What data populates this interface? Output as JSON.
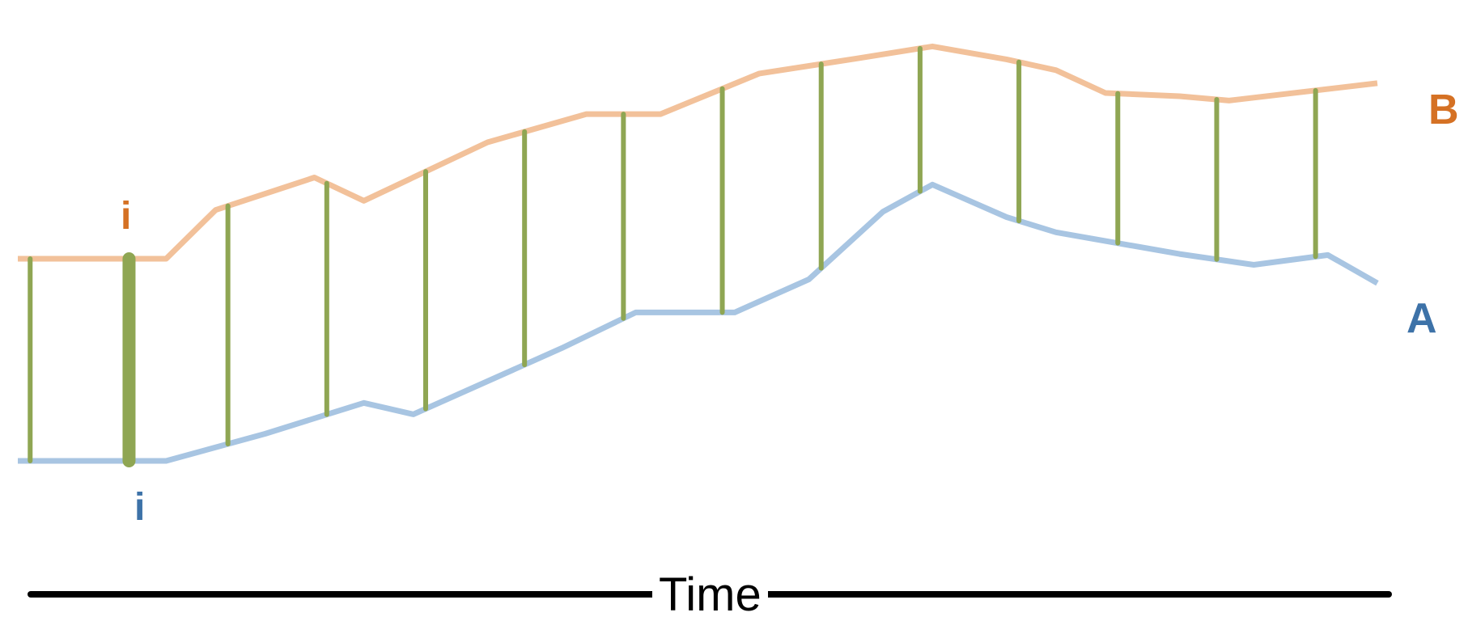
{
  "colors": {
    "series_a": "#a8c5e2",
    "series_b": "#f2c19a",
    "label_a": "#3d72a8",
    "label_b": "#d57124",
    "connector": "#8fa653",
    "axis": "#000000"
  },
  "labels": {
    "series_a": "A",
    "series_b": "B",
    "marker_a": "i",
    "marker_b": "i",
    "x_axis": "Time"
  },
  "chart_data": {
    "type": "line",
    "xlabel": "Time",
    "ylabel": "",
    "series": [
      {
        "name": "A",
        "values": [
          {
            "t": 0,
            "y": 0.0
          },
          {
            "t": 12,
            "y": 0.0
          },
          {
            "t": 20,
            "y": 0.5
          },
          {
            "t": 28,
            "y": 1.07
          },
          {
            "t": 32,
            "y": 0.86
          },
          {
            "t": 44,
            "y": 2.08
          },
          {
            "t": 50,
            "y": 2.74
          },
          {
            "t": 58,
            "y": 2.74
          },
          {
            "t": 64,
            "y": 3.35
          },
          {
            "t": 70,
            "y": 4.6
          },
          {
            "t": 74,
            "y": 5.1
          },
          {
            "t": 80,
            "y": 4.5
          },
          {
            "t": 84,
            "y": 4.22
          },
          {
            "t": 94,
            "y": 3.82
          },
          {
            "t": 100,
            "y": 3.62
          },
          {
            "t": 106,
            "y": 3.8
          },
          {
            "t": 110,
            "y": 3.28
          }
        ]
      },
      {
        "name": "B",
        "values": [
          {
            "t": 0,
            "y": 0.0
          },
          {
            "t": 12,
            "y": 0.0
          },
          {
            "t": 16,
            "y": 0.9
          },
          {
            "t": 24,
            "y": 1.5
          },
          {
            "t": 28,
            "y": 1.07
          },
          {
            "t": 38,
            "y": 2.15
          },
          {
            "t": 46,
            "y": 2.67
          },
          {
            "t": 52,
            "y": 2.67
          },
          {
            "t": 60,
            "y": 3.42
          },
          {
            "t": 68,
            "y": 3.7
          },
          {
            "t": 74,
            "y": 3.92
          },
          {
            "t": 80,
            "y": 3.68
          },
          {
            "t": 84,
            "y": 3.48
          },
          {
            "t": 88,
            "y": 3.06
          },
          {
            "t": 94,
            "y": 3.0
          },
          {
            "t": 98,
            "y": 2.92
          },
          {
            "t": 110,
            "y": 3.24
          }
        ]
      }
    ],
    "connectors": [
      {
        "t": 1,
        "emphasized": false
      },
      {
        "t": 9,
        "emphasized": true
      },
      {
        "t": 17,
        "emphasized": false
      },
      {
        "t": 25,
        "emphasized": false
      },
      {
        "t": 33,
        "emphasized": false
      },
      {
        "t": 41,
        "emphasized": false
      },
      {
        "t": 49,
        "emphasized": false
      },
      {
        "t": 57,
        "emphasized": false
      },
      {
        "t": 65,
        "emphasized": false
      },
      {
        "t": 73,
        "emphasized": false
      },
      {
        "t": 81,
        "emphasized": false
      },
      {
        "t": 89,
        "emphasized": false
      },
      {
        "t": 97,
        "emphasized": false
      },
      {
        "t": 105,
        "emphasized": false
      }
    ]
  }
}
